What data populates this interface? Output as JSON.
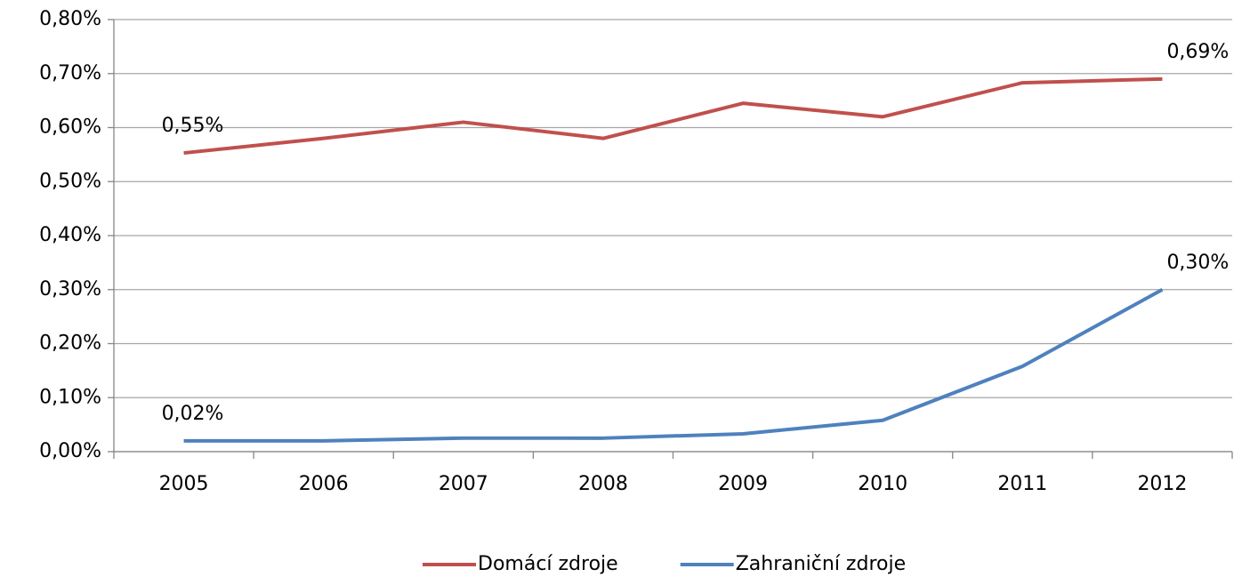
{
  "chart_data": {
    "type": "line",
    "categories": [
      "2005",
      "2006",
      "2007",
      "2008",
      "2009",
      "2010",
      "2011",
      "2012"
    ],
    "series": [
      {
        "name": "Domácí zdroje",
        "color": "#c0504d",
        "values": [
          0.553,
          0.58,
          0.61,
          0.58,
          0.645,
          0.62,
          0.683,
          0.69
        ],
        "value_labels": [
          "0,55%",
          null,
          null,
          null,
          null,
          null,
          null,
          "0,69%"
        ]
      },
      {
        "name": "Zahraniční zdroje",
        "color": "#4f81bd",
        "values": [
          0.02,
          0.02,
          0.025,
          0.025,
          0.033,
          0.058,
          0.158,
          0.3
        ],
        "value_labels": [
          "0,02%",
          null,
          null,
          null,
          null,
          null,
          null,
          "0,30%"
        ]
      }
    ],
    "ylim": [
      0,
      0.8
    ],
    "yticks": [
      {
        "value": 0,
        "label": "0,00%"
      },
      {
        "value": 0.1,
        "label": "0,10%"
      },
      {
        "value": 0.2,
        "label": "0,20%"
      },
      {
        "value": 0.3,
        "label": "0,30%"
      },
      {
        "value": 0.4,
        "label": "0,40%"
      },
      {
        "value": 0.5,
        "label": "0,50%"
      },
      {
        "value": 0.6,
        "label": "0,60%"
      },
      {
        "value": 0.7,
        "label": "0,70%"
      },
      {
        "value": 0.8,
        "label": "0,80%"
      }
    ],
    "grid": true,
    "legend": "bottom"
  }
}
